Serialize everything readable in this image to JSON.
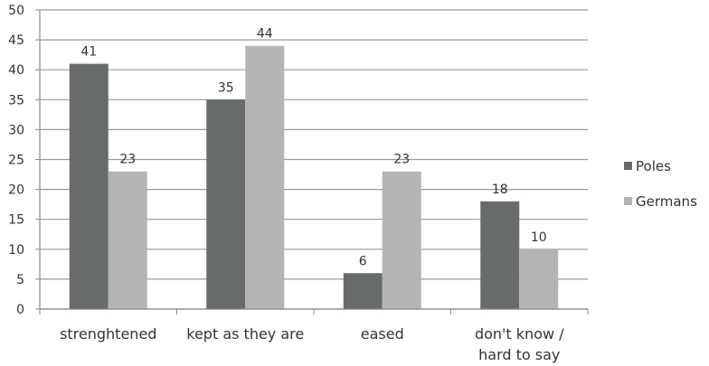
{
  "chart_data": {
    "type": "bar",
    "categories": [
      "strenghtened",
      "kept as they are",
      "eased",
      "don't know / hard to say"
    ],
    "category_lines": [
      [
        "strenghtened"
      ],
      [
        "kept as they are"
      ],
      [
        "eased"
      ],
      [
        "don't know /",
        "hard to say"
      ]
    ],
    "series": [
      {
        "name": "Poles",
        "values": [
          41,
          35,
          6,
          18
        ],
        "color": "#686b6b"
      },
      {
        "name": "Germans",
        "values": [
          23,
          44,
          23,
          10
        ],
        "color": "#b3b5b5"
      }
    ],
    "ylim": [
      0,
      50
    ],
    "yticks": [
      0,
      5,
      10,
      15,
      20,
      25,
      30,
      35,
      40,
      45,
      50
    ],
    "grid": true,
    "legend_position": "right",
    "data_labels": true,
    "xlabel": "",
    "ylabel": "",
    "title": ""
  }
}
